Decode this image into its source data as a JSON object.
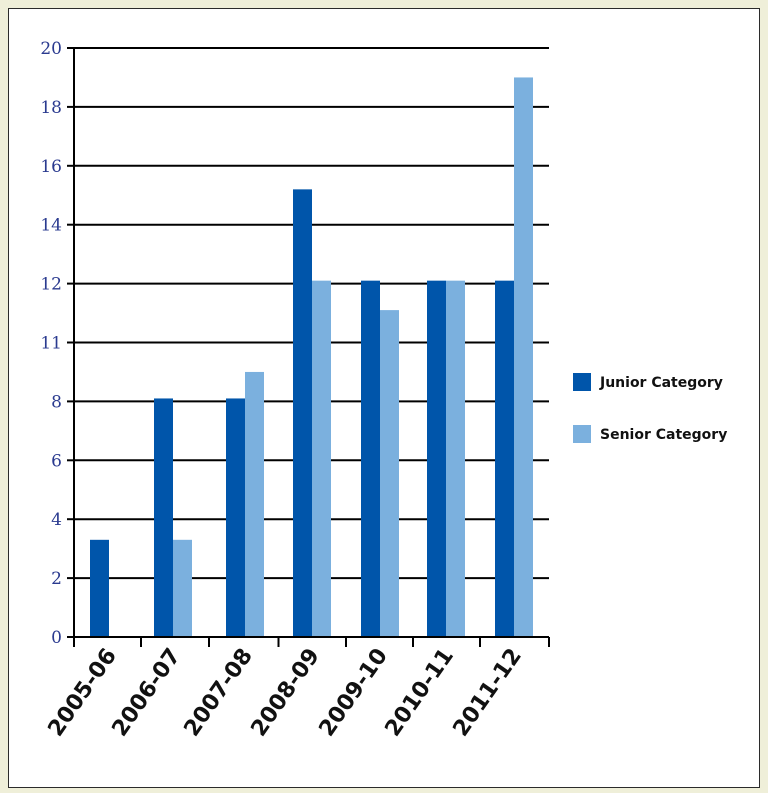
{
  "chart_data": {
    "type": "bar",
    "categories": [
      "2005-06",
      "2006-07",
      "2007-08",
      "2008-09",
      "2009-10",
      "2010-11",
      "2011-12"
    ],
    "series": [
      {
        "name": "Junior Category",
        "color": "#0055aa",
        "values": [
          3.3,
          8.1,
          8.1,
          15.2,
          12.1,
          12.1,
          12.1
        ]
      },
      {
        "name": "Senior Category",
        "color": "#7bb0de",
        "values": [
          null,
          3.3,
          9,
          12.1,
          11.1,
          12.1,
          19
        ]
      }
    ],
    "y_ticks": [
      "0",
      "2",
      "4",
      "6",
      "8",
      "11",
      "12",
      "14",
      "16",
      "18",
      "20"
    ],
    "ylim": [
      0,
      20
    ],
    "grid": true,
    "legend_position": "right",
    "title": "",
    "xlabel": "",
    "ylabel": ""
  }
}
